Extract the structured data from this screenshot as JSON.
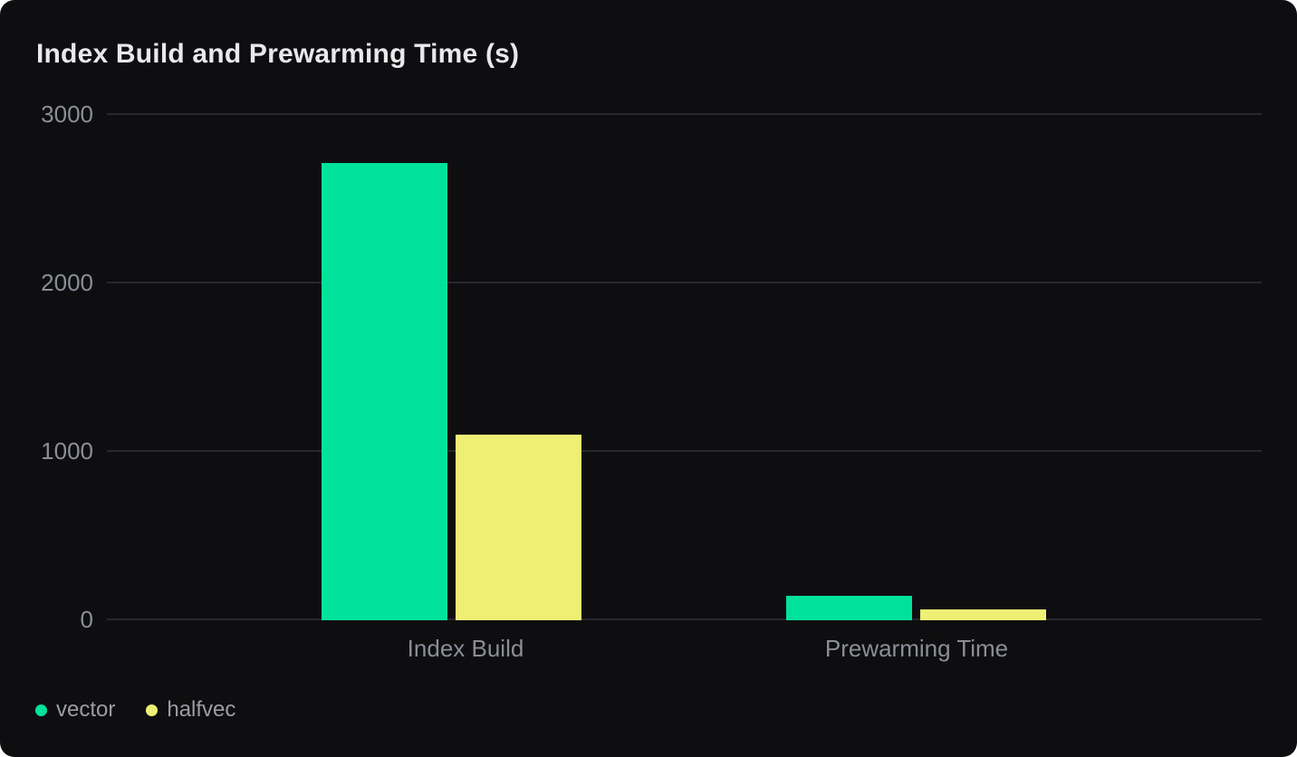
{
  "title": "Index Build and Prewarming Time (s)",
  "chart_data": {
    "type": "bar",
    "title": "Index Build and Prewarming Time (s)",
    "categories": [
      "Index Build",
      "Prewarming Time"
    ],
    "series": [
      {
        "name": "vector",
        "color": "#00e19b",
        "values": [
          2715,
          145
        ]
      },
      {
        "name": "halfvec",
        "color": "#eef076",
        "values": [
          1100,
          65
        ]
      }
    ],
    "xlabel": "",
    "ylabel": "",
    "ylim": [
      0,
      3000
    ],
    "y_ticks": [
      0,
      1000,
      2000,
      3000
    ],
    "grid": "horizontal",
    "legend_position": "bottom-left",
    "colors": {
      "card_background": "#0e0e10",
      "page_background": "#ffffff",
      "gridline": "#26282b",
      "tick_label": "#8a8e96",
      "title_text": "#e9e9eb",
      "legend_text": "#9a9da3"
    }
  }
}
